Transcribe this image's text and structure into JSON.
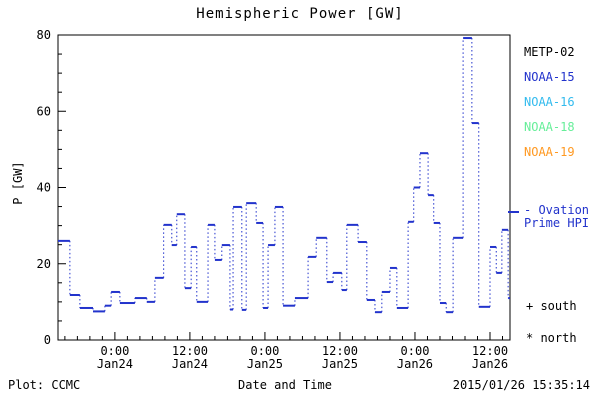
{
  "title": "Hemispheric Power [GW]",
  "ylabel": "P [GW]",
  "footer": {
    "plot_credit": "Plot: CCMC",
    "xlabel": "Date and Time",
    "timestamp": "2015/01/26 15:35:14"
  },
  "legend": {
    "satellites": [
      {
        "label": "METP-02",
        "color": "#000000"
      },
      {
        "label": "NOAA-15",
        "color": "#2233cc"
      },
      {
        "label": "NOAA-16",
        "color": "#33bbee"
      },
      {
        "label": "NOAA-18",
        "color": "#66ee99"
      },
      {
        "label": "NOAA-19",
        "color": "#ff9922"
      }
    ],
    "model_line1": "- Ovation",
    "model_line2": "Prime HPI",
    "model_color": "#2233cc",
    "south_marker": "+ south",
    "north_marker": "* north"
  },
  "chart_data": {
    "type": "line",
    "subtype": "step-plot-with-dotted-risers",
    "title": "Hemispheric Power [GW]",
    "xlabel": "Date and Time",
    "ylabel": "P [GW]",
    "grid": false,
    "legend_position": "right",
    "ylim": [
      0,
      80
    ],
    "y_major_ticks": [
      0,
      20,
      40,
      60,
      80
    ],
    "y_minor_step": 5,
    "x_unit": "hours since 2015-01-24 00:00",
    "x_range_hours": [
      -9.1,
      63.2
    ],
    "x_minor_step_hours": 2,
    "x_major_ticks": [
      {
        "t": 0,
        "line1": "0:00",
        "line2": "Jan24"
      },
      {
        "t": 12,
        "line1": "12:00",
        "line2": "Jan24"
      },
      {
        "t": 24,
        "line1": "0:00",
        "line2": "Jan25"
      },
      {
        "t": 36,
        "line1": "12:00",
        "line2": "Jan25"
      },
      {
        "t": 48,
        "line1": "0:00",
        "line2": "Jan26"
      },
      {
        "t": 60,
        "line1": "12:00",
        "line2": "Jan26"
      }
    ],
    "axis_color": "#000000",
    "series": [
      {
        "name": "Ovation Prime HPI",
        "color": "#2233cc",
        "steps_t0_t1_gw": [
          [
            -9.1,
            -7.2,
            26.0
          ],
          [
            -7.2,
            -5.6,
            11.8
          ],
          [
            -5.6,
            -3.5,
            8.4
          ],
          [
            -3.5,
            -1.6,
            7.5
          ],
          [
            -1.6,
            -0.6,
            9.0
          ],
          [
            -0.6,
            0.8,
            12.6
          ],
          [
            0.8,
            3.2,
            9.7
          ],
          [
            3.2,
            5.1,
            11.0
          ],
          [
            5.1,
            6.4,
            10.0
          ],
          [
            6.4,
            7.8,
            16.3
          ],
          [
            7.8,
            9.1,
            30.2
          ],
          [
            9.1,
            9.9,
            24.9
          ],
          [
            9.9,
            11.2,
            33.0
          ],
          [
            11.2,
            12.2,
            13.6
          ],
          [
            12.2,
            13.1,
            24.4
          ],
          [
            13.1,
            14.9,
            10.0
          ],
          [
            14.9,
            16.0,
            30.2
          ],
          [
            16.0,
            17.1,
            21.0
          ],
          [
            17.1,
            18.4,
            24.9
          ],
          [
            18.4,
            18.9,
            8.0
          ],
          [
            18.9,
            20.3,
            34.9
          ],
          [
            20.3,
            21.0,
            7.9
          ],
          [
            21.0,
            22.6,
            35.9
          ],
          [
            22.6,
            23.7,
            30.7
          ],
          [
            23.7,
            24.5,
            8.4
          ],
          [
            24.5,
            25.6,
            24.9
          ],
          [
            25.6,
            26.9,
            34.9
          ],
          [
            26.9,
            28.8,
            9.0
          ],
          [
            28.8,
            30.9,
            11.0
          ],
          [
            30.9,
            32.2,
            21.8
          ],
          [
            32.2,
            33.9,
            26.8
          ],
          [
            33.9,
            34.9,
            15.2
          ],
          [
            34.9,
            36.3,
            17.6
          ],
          [
            36.3,
            37.1,
            13.1
          ],
          [
            37.1,
            38.9,
            30.2
          ],
          [
            38.9,
            40.3,
            25.7
          ],
          [
            40.3,
            41.6,
            10.5
          ],
          [
            41.6,
            42.7,
            7.3
          ],
          [
            42.7,
            44.0,
            12.6
          ],
          [
            44.0,
            45.1,
            18.9
          ],
          [
            45.1,
            46.9,
            8.4
          ],
          [
            46.9,
            47.8,
            31.0
          ],
          [
            47.8,
            48.8,
            40.0
          ],
          [
            48.8,
            50.1,
            49.0
          ],
          [
            50.1,
            51.0,
            38.0
          ],
          [
            51.0,
            52.0,
            30.7
          ],
          [
            52.0,
            53.0,
            9.7
          ],
          [
            53.0,
            54.1,
            7.3
          ],
          [
            54.1,
            55.7,
            26.8
          ],
          [
            55.7,
            57.1,
            79.2
          ],
          [
            57.1,
            58.2,
            56.9
          ],
          [
            58.2,
            60.0,
            8.7
          ],
          [
            60.0,
            61.0,
            24.4
          ],
          [
            61.0,
            61.9,
            17.6
          ],
          [
            61.9,
            62.9,
            28.9
          ],
          [
            62.9,
            63.2,
            11.0
          ]
        ]
      }
    ]
  }
}
